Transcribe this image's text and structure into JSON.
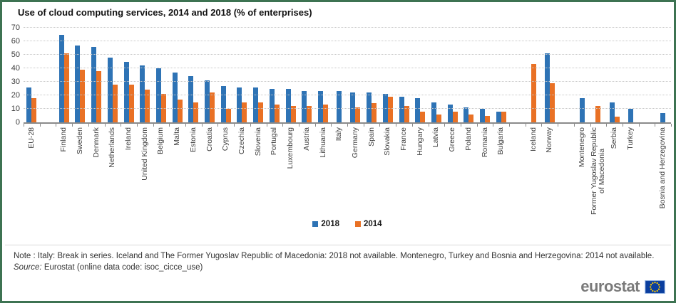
{
  "title": "Use of cloud computing services, 2014 and 2018 (% of enterprises)",
  "legend": [
    {
      "label": "2018",
      "color": "#2E73B5"
    },
    {
      "label": "2014",
      "color": "#E97125"
    }
  ],
  "note": "Note : Italy: Break in series. Iceland and The Former Yugoslav Republic of Macedonia: 2018 not available. Montenegro, Turkey and Bosnia and Herzegovina: 2014 not available.",
  "source_label": "Source:",
  "source_text": "Eurostat (online data code: isoc_cicce_use)",
  "logo_text": "eurostat",
  "chart_data": {
    "type": "bar",
    "title": "Use of cloud computing services, 2014 and 2018 (% of enterprises)",
    "ylabel": "% of enterprises",
    "ylim": [
      0,
      70
    ],
    "ytick_interval": 10,
    "grid": true,
    "legend_position": "bottom",
    "series": [
      {
        "name": "2018",
        "key": "v2018",
        "color": "#2E73B5"
      },
      {
        "name": "2014",
        "key": "v2014",
        "color": "#E97125"
      }
    ],
    "items": [
      {
        "label": "EU-28",
        "v2018": 26,
        "v2014": 18
      },
      {
        "spacer": true
      },
      {
        "label": "Finland",
        "v2018": 65,
        "v2014": 51
      },
      {
        "label": "Sweden",
        "v2018": 57,
        "v2014": 39
      },
      {
        "label": "Denmark",
        "v2018": 56,
        "v2014": 38
      },
      {
        "label": "Netherlands",
        "v2018": 48,
        "v2014": 28
      },
      {
        "label": "Ireland",
        "v2018": 45,
        "v2014": 28
      },
      {
        "label": "United Kingdom",
        "v2018": 42,
        "v2014": 24
      },
      {
        "label": "Belgium",
        "v2018": 40,
        "v2014": 21
      },
      {
        "label": "Malta",
        "v2018": 37,
        "v2014": 17
      },
      {
        "label": "Estonia",
        "v2018": 34,
        "v2014": 15
      },
      {
        "label": "Croatia",
        "v2018": 31,
        "v2014": 22
      },
      {
        "label": "Cyprus",
        "v2018": 27,
        "v2014": 10
      },
      {
        "label": "Czechia",
        "v2018": 26,
        "v2014": 15
      },
      {
        "label": "Slovenia",
        "v2018": 26,
        "v2014": 15
      },
      {
        "label": "Portugal",
        "v2018": 25,
        "v2014": 13
      },
      {
        "label": "Luxembourg",
        "v2018": 25,
        "v2014": 12
      },
      {
        "label": "Austria",
        "v2018": 23,
        "v2014": 12
      },
      {
        "label": "Lithuania",
        "v2018": 23,
        "v2014": 13
      },
      {
        "label": "Italy",
        "v2018": 23,
        "v2014": null
      },
      {
        "label": "Germany",
        "v2018": 22,
        "v2014": 11
      },
      {
        "label": "Spain",
        "v2018": 22,
        "v2014": 14
      },
      {
        "label": "Slovakia",
        "v2018": 21,
        "v2014": 19
      },
      {
        "label": "France",
        "v2018": 19,
        "v2014": 12
      },
      {
        "label": "Hungary",
        "v2018": 18,
        "v2014": 8
      },
      {
        "label": "Latvia",
        "v2018": 15,
        "v2014": 6
      },
      {
        "label": "Greece",
        "v2018": 13,
        "v2014": 8
      },
      {
        "label": "Poland",
        "v2018": 11,
        "v2014": 6
      },
      {
        "label": "Romania",
        "v2018": 10,
        "v2014": 5
      },
      {
        "label": "Bulgaria",
        "v2018": 8,
        "v2014": 8
      },
      {
        "spacer": true
      },
      {
        "label": "Iceland",
        "v2018": null,
        "v2014": 43
      },
      {
        "label": "Norway",
        "v2018": 51,
        "v2014": 29
      },
      {
        "spacer": true
      },
      {
        "label": "Montenegro",
        "v2018": 18,
        "v2014": null
      },
      {
        "label": "Former Yugoslav Republic\nof Macedonia",
        "v2018": null,
        "v2014": 12
      },
      {
        "label": "Serbia",
        "v2018": 15,
        "v2014": 4
      },
      {
        "label": "Turkey",
        "v2018": 10,
        "v2014": null
      },
      {
        "spacer": true
      },
      {
        "label": "Bosnia and Herzegovina",
        "v2018": 7,
        "v2014": null
      }
    ]
  }
}
